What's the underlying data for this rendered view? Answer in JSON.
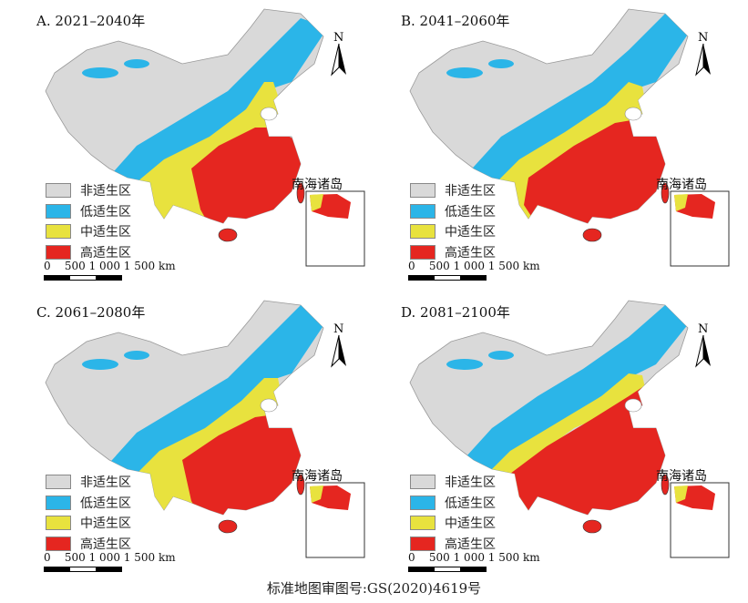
{
  "colors": {
    "non": "#d9d9d9",
    "low": "#2bb5e8",
    "mid": "#e8e23e",
    "high": "#e52620"
  },
  "panels": [
    {
      "title": "A. 2021–2040年"
    },
    {
      "title": "B. 2041–2060年"
    },
    {
      "title": "C. 2061–2080年"
    },
    {
      "title": "D. 2081–2100年"
    }
  ],
  "legend": [
    "非适生区",
    "低适生区",
    "中适生区",
    "高适生区"
  ],
  "scale_label": "0    500 1 000 1 500 km",
  "north_label": "N",
  "inset_label": "南海诸岛",
  "caption": "标准地图审图号:GS(2020)4619号"
}
